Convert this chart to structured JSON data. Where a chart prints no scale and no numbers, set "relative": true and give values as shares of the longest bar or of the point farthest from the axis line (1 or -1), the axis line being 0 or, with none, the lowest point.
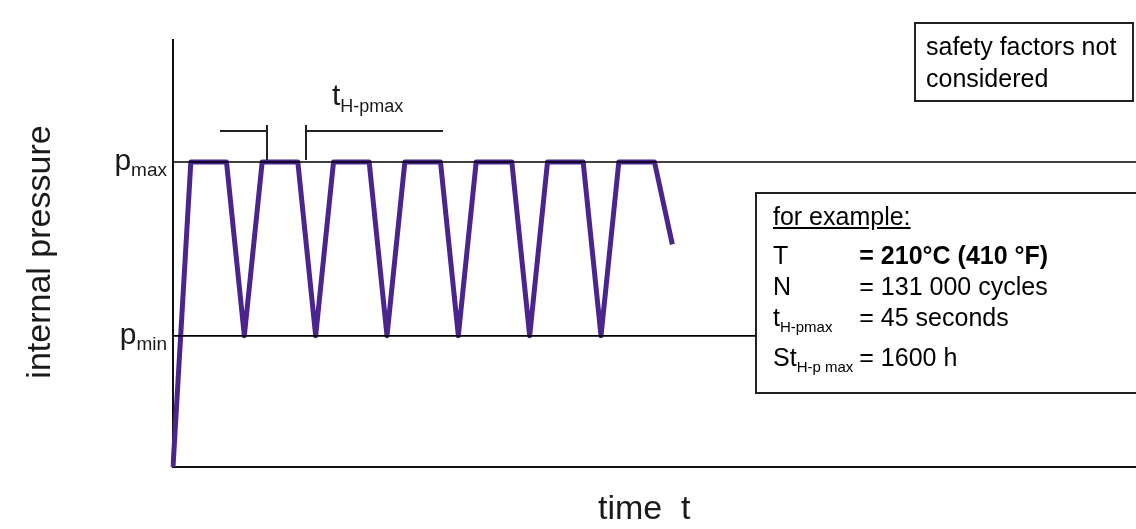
{
  "chart_data": {
    "type": "line",
    "xlabel": "time  t",
    "ylabel": "internal pressure",
    "relative": true,
    "tick_labels": false,
    "legend": false,
    "grid": false,
    "marker": "none",
    "line_style": "solid",
    "categories": [
      null,
      null,
      null,
      null,
      null,
      null,
      null,
      null,
      null,
      null,
      null,
      null,
      null,
      null,
      null,
      null,
      null,
      null,
      null,
      null,
      null,
      null,
      null,
      null,
      null,
      null,
      null,
      null,
      null,
      null,
      null,
      null,
      null,
      null,
      null,
      null,
      null,
      null,
      null,
      null,
      null,
      null,
      null,
      null,
      null,
      null,
      null,
      null,
      null,
      null,
      null,
      null,
      null,
      null,
      null
    ],
    "series": [
      {
        "color": "#4a2590",
        "values": [
          0,
          1,
          1,
          1,
          0.43,
          1,
          1,
          1,
          0.43,
          1,
          1,
          1,
          0.43,
          1,
          1,
          1,
          0.43,
          1,
          1,
          1,
          0.43,
          1,
          1,
          1,
          0.43,
          1,
          1,
          1,
          0.73,
          null,
          null,
          null,
          null,
          null,
          null,
          null,
          null,
          null,
          null,
          null,
          null,
          null,
          null,
          null,
          null,
          null,
          null,
          null,
          null,
          null,
          null,
          null,
          null,
          null,
          null
        ]
      }
    ],
    "ref_lines": [
      {
        "axis": "y",
        "value": 1,
        "label": "p$_{max}$",
        "color": "#000000"
      },
      {
        "axis": "y",
        "value": 0.43,
        "label": "p$_{min}$",
        "color": "#000000"
      }
    ],
    "annotations": [
      "safety factors not considered",
      "for example:",
      "T = 210°C (410 °F)",
      "N = 131 000 cycles",
      "t$_{H-pmax}$ = 45 seconds",
      "St$_{H-p max}$ = 1600 h",
      "t$_{H-pmax}$"
    ]
  }
}
